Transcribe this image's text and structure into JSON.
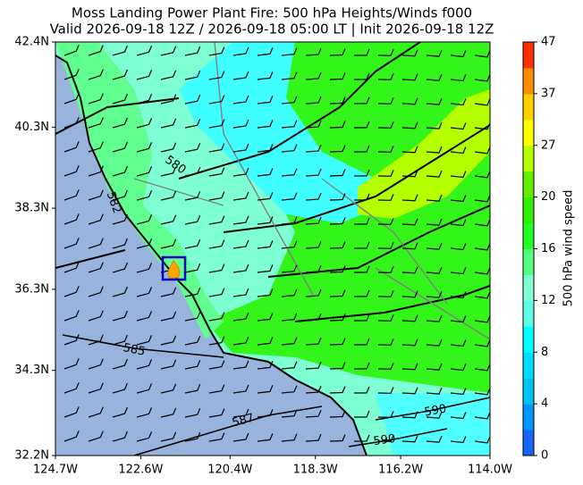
{
  "title": "Moss Landing Power Plant Fire: 500 hPa Heights/Winds f000",
  "subtitle": "Valid 2026-09-18 12Z / 2026-09-18 05:00 LT | Init 2026-09-18 12Z",
  "map": {
    "lonlim": [
      -124.7,
      -114.0
    ],
    "latlim": [
      32.2,
      42.4
    ],
    "lat_ticks": [
      {
        "value": 42.4,
        "label": "42.4N"
      },
      {
        "value": 40.3,
        "label": "40.3N"
      },
      {
        "value": 38.3,
        "label": "38.3N"
      },
      {
        "value": 36.3,
        "label": "36.3N"
      },
      {
        "value": 34.3,
        "label": "34.3N"
      },
      {
        "value": 32.2,
        "label": "32.2N"
      }
    ],
    "lon_ticks": [
      {
        "value": -124.7,
        "label": "124.7W"
      },
      {
        "value": -122.6,
        "label": "122.6W"
      },
      {
        "value": -120.4,
        "label": "120.4W"
      },
      {
        "value": -118.3,
        "label": "118.3W"
      },
      {
        "value": -116.2,
        "label": "116.2W"
      },
      {
        "value": -114.0,
        "label": "114.0W"
      }
    ],
    "contour_labels": [
      "580",
      "582",
      "585",
      "587",
      "590",
      "590"
    ]
  },
  "colorbar": {
    "label": "500 hPa wind speed",
    "ticks": [
      0,
      4,
      8,
      12,
      16,
      20,
      27,
      37,
      47
    ],
    "colors": [
      "#1565ff",
      "#0096ff",
      "#00c3f5",
      "#00dcff",
      "#00ffff",
      "#5fffe6",
      "#80ffd0",
      "#55ff80",
      "#22ff22",
      "#30f000",
      "#60f000",
      "#b4ff00",
      "#ffff00",
      "#ffd000",
      "#ff8c00",
      "#ff3000"
    ]
  }
}
